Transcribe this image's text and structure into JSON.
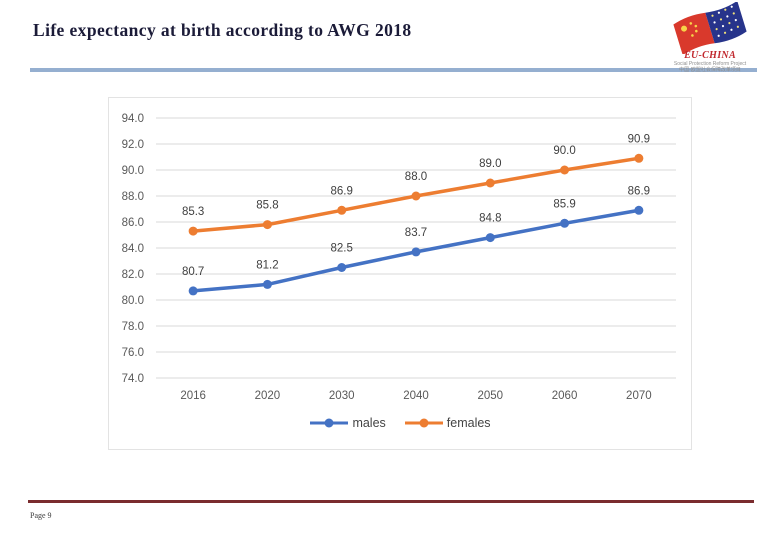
{
  "slide": {
    "title": "Life expectancy at birth according to AWG 2018",
    "page_label": "Page 9"
  },
  "logo": {
    "wordmark": "EU-CHINA",
    "subtitle_en": "Social Protection Reform Project",
    "subtitle_zh": "中国-欧盟社会保障改革项目"
  },
  "colors": {
    "title_text": "#1b1b38",
    "title_underline": "#95afd0",
    "footer_line": "#7a2c2e",
    "grid": "#d9d9d9",
    "axis_text": "#595959",
    "data_label_text": "#3f3f3f",
    "males": "#4472c4",
    "females": "#ed7d31"
  },
  "chart_data": {
    "type": "line",
    "title": "",
    "categories": [
      "2016",
      "2020",
      "2030",
      "2040",
      "2050",
      "2060",
      "2070"
    ],
    "series": [
      {
        "name": "males",
        "color": "#4472c4",
        "values": [
          80.7,
          81.2,
          82.5,
          83.7,
          84.8,
          85.9,
          86.9
        ]
      },
      {
        "name": "females",
        "color": "#ed7d31",
        "values": [
          85.3,
          85.8,
          86.9,
          88.0,
          89.0,
          90.0,
          90.9
        ]
      }
    ],
    "ylim": [
      74.0,
      94.0
    ],
    "ytick_step": 2.0,
    "grid": true,
    "data_labels": true,
    "legend_position": "bottom"
  }
}
